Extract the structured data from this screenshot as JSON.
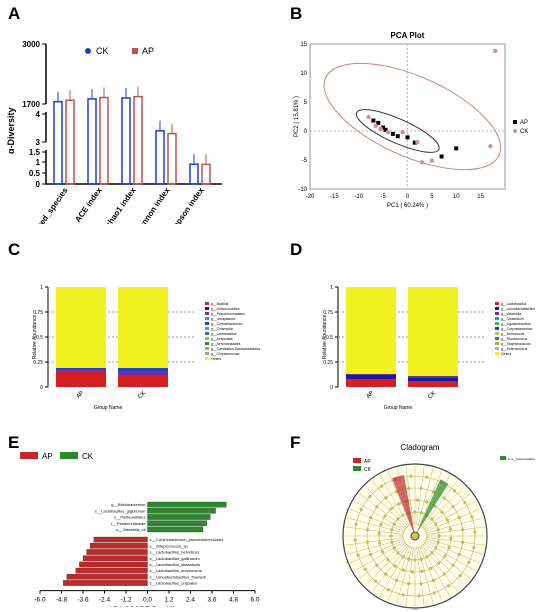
{
  "panel_labels": [
    "A",
    "B",
    "C",
    "D",
    "E",
    "F"
  ],
  "chart_data": [
    {
      "id": "A",
      "type": "bar",
      "ylabel": "α-Diversity",
      "legend": [
        "CK",
        "AP"
      ],
      "colors": {
        "CK": "#1a3fd6",
        "AP": "#c05050"
      },
      "categories": [
        "observed_species",
        "ACE index",
        "chao1 index",
        "shannon index",
        "simpson index"
      ],
      "y_ticks_top": [
        "3000",
        "1700"
      ],
      "y_ticks_mid": [
        "4",
        "3"
      ],
      "y_ticks_low": [
        "1.5",
        "1",
        "0.5",
        "0"
      ],
      "series": [
        {
          "name": "CK",
          "values": [
            1750,
            1810,
            1830,
            3.4,
            0.93
          ]
        },
        {
          "name": "AP",
          "values": [
            1780,
            1840,
            1860,
            3.3,
            0.92
          ]
        }
      ]
    },
    {
      "id": "B",
      "type": "scatter",
      "title": "PCA Plot",
      "xlabel": "PC1 ( 60.24% )",
      "ylabel": "PC2 ( 15.81% )",
      "xlim": [
        -20,
        20
      ],
      "ylim": [
        -10,
        15
      ],
      "x_ticks": [
        "-20",
        "-15",
        "-10",
        "-5",
        "0",
        "5",
        "10",
        "15"
      ],
      "y_ticks": [
        "15",
        "10",
        "5",
        "0",
        "-5",
        "-10"
      ],
      "legend": [
        "AP",
        "CK"
      ],
      "series": [
        {
          "name": "AP",
          "points": [
            [
              -7,
              1.8
            ],
            [
              -6,
              1.4
            ],
            [
              -5,
              0.6
            ],
            [
              -4.5,
              0.2
            ],
            [
              -3,
              -0.5
            ],
            [
              -2,
              -0.9
            ],
            [
              0,
              -1.1
            ],
            [
              1.5,
              -2
            ],
            [
              7,
              -4.4
            ],
            [
              10,
              -3
            ]
          ]
        },
        {
          "name": "CK",
          "points": [
            [
              -8,
              2.4
            ],
            [
              -6.5,
              0.9
            ],
            [
              -5.5,
              0.4
            ],
            [
              -4,
              -0.2
            ],
            [
              -1,
              -0.2
            ],
            [
              2,
              -1.9
            ],
            [
              3,
              -5.4
            ],
            [
              5,
              -5.1
            ],
            [
              17,
              -2.6
            ],
            [
              18,
              13.8
            ]
          ]
        }
      ]
    },
    {
      "id": "C",
      "type": "bar",
      "ylabel": "Relative Abundance",
      "xlabel": "Group Name",
      "categories": [
        "AP",
        "CK"
      ],
      "y_ticks": [
        "1",
        "0.75",
        "0.5",
        "0.25",
        "0"
      ],
      "legend": [
        "g__Bacillus",
        "g__Anthococcidies",
        "g__Pseudomonadales",
        "g__Ureaplasma",
        "g__Corynebacterium",
        "g__Chlamydia",
        "g__Lactobacillus",
        "g__Amycolata",
        "g__Aeromonadales",
        "g__Candidatus Saccharibacteria",
        "g__Chryseomonas",
        "Others"
      ],
      "legend_colors": [
        "#d42020",
        "#1020a0",
        "#7030a0",
        "#30a0c0",
        "#2040d0",
        "#50b050",
        "#3070c0",
        "#90c040",
        "#1f8f4f",
        "#c0a030",
        "#a0a0a0",
        "#f2f222"
      ],
      "stack": {
        "AP": [
          0.16,
          0.02,
          0.01,
          0.81
        ],
        "CK": [
          0.12,
          0.04,
          0.03,
          0.81
        ]
      },
      "stack_colors": [
        "#d42020",
        "#7030a0",
        "#2040d0",
        "#f2f222"
      ]
    },
    {
      "id": "D",
      "type": "bar",
      "ylabel": "Relative Abundance",
      "xlabel": "Group Name",
      "categories": [
        "AP",
        "CK"
      ],
      "y_ticks": [
        "1",
        "0.75",
        "0.5",
        "0.25",
        "0"
      ],
      "legend": [
        "g__Lactobacillus",
        "g__Limosilactobacillus",
        "g__Weissella",
        "g__Clostridium",
        "g__Ligilactobacillus",
        "g__Corynebacterium",
        "g__Aerococcus",
        "g__Rhodococcus",
        "g__Staphylococcus",
        "g__Enterococcus",
        "Others"
      ],
      "legend_colors": [
        "#d42020",
        "#1020a0",
        "#7030a0",
        "#30a0c0",
        "#50b050",
        "#2040d0",
        "#a0d050",
        "#3070c0",
        "#c0a030",
        "#b0b0b0",
        "#f2f222"
      ],
      "stack": {
        "AP": [
          0.08,
          0.04,
          0.01,
          0.87
        ],
        "CK": [
          0.06,
          0.03,
          0.02,
          0.89
        ]
      },
      "stack_colors": [
        "#d42020",
        "#1020a0",
        "#7030a0",
        "#f2f222"
      ]
    },
    {
      "id": "E",
      "type": "bar",
      "xlabel": "LDA SCORE (log 10)",
      "legend": [
        "AP",
        "CK"
      ],
      "colors": {
        "AP": "#c0282a",
        "CK": "#2b8a2b"
      },
      "x_ticks": [
        "-6.0",
        "-4.8",
        "-3.6",
        "-2.4",
        "-1.2",
        "0.0",
        "1.2",
        "2.4",
        "3.6",
        "4.8",
        "6.0"
      ],
      "xlim": [
        -6,
        6
      ],
      "categories": [
        "g__Bifidobacterium",
        "s__Lactobacillus_gigeriorum",
        "o__Pasteurellales",
        "f__Pasteurellaceae",
        "s__Olsenella_uli",
        "s__Corynebacterium_pseudotuberculosis",
        "s__Streptococcus_sp",
        "s__Lactobacillus_helveticus",
        "s__Lactobacillus_gallinarum",
        "s__Lactobacillus_kitasatonis",
        "s__Lactobacillus_amylovorus",
        "s__Limosilactobacillus_fhumerti",
        "s__Lactobacillus_crispatus"
      ],
      "values": [
        4.4,
        3.8,
        3.5,
        3.3,
        3.1,
        -3.0,
        -3.2,
        -3.4,
        -3.6,
        -3.8,
        -4.0,
        -4.5,
        -4.7
      ]
    },
    {
      "id": "F",
      "type": "other",
      "title": "Cladogram",
      "legend": [
        "AP",
        "CK"
      ],
      "colors": {
        "AP": "#c0282a",
        "CK": "#2b8a2b"
      },
      "side_note": "a: a__Pasteurellales"
    }
  ]
}
